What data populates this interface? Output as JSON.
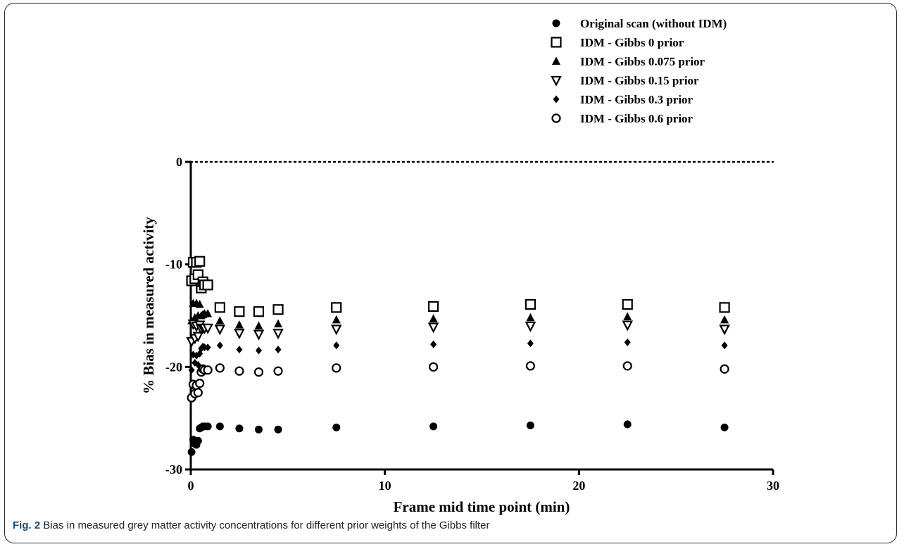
{
  "caption": {
    "label": "Fig. 2",
    "text": " Bias in measured grey matter activity concentrations for different prior weights of the Gibbs filter"
  },
  "chart_data": {
    "type": "scatter",
    "title": "",
    "xlabel": "Frame mid time point (min)",
    "ylabel": "% Bias in measured activity",
    "xlim": [
      0,
      30
    ],
    "ylim": [
      -30,
      0
    ],
    "xticks": [
      "0",
      "10",
      "20",
      "30"
    ],
    "yticks": [
      "0",
      "-10",
      "-20",
      "-30"
    ],
    "reference_line": {
      "y": 0,
      "style": "dotted"
    },
    "grid": false,
    "legend_position": "top-right",
    "x": [
      0.04,
      0.125,
      0.21,
      0.29,
      0.375,
      0.46,
      0.54,
      0.625,
      0.71,
      0.875,
      1.5,
      2.5,
      3.5,
      4.5,
      7.5,
      12.5,
      17.5,
      22.5,
      27.5
    ],
    "series": [
      {
        "name": "Original scan (without IDM)",
        "marker": "filled-circle",
        "color": "#000000",
        "y": [
          -28.3,
          -27.1,
          -27.5,
          -27.6,
          -27.2,
          -26.0,
          -25.9,
          -25.8,
          -25.8,
          -25.8,
          -25.8,
          -26.0,
          -26.1,
          -26.1,
          -25.9,
          -25.8,
          -25.7,
          -25.6,
          -25.9
        ]
      },
      {
        "name": "IDM - Gibbs 0 prior",
        "marker": "open-square",
        "color": "#000000",
        "y": [
          -11.6,
          -9.8,
          -11.4,
          -9.8,
          -11.0,
          -9.7,
          -12.3,
          -11.7,
          -12.0,
          -12.0,
          -14.2,
          -14.6,
          -14.6,
          -14.4,
          -14.2,
          -14.1,
          -13.9,
          -13.9,
          -14.2
        ]
      },
      {
        "name": "IDM - Gibbs 0.075 prior",
        "marker": "filled-triangle",
        "color": "#000000",
        "y": [
          -15.5,
          -13.8,
          -15.2,
          -13.8,
          -15.0,
          -13.9,
          -15.0,
          -14.9,
          -14.8,
          -14.8,
          -15.5,
          -15.9,
          -16.0,
          -15.8,
          -15.4,
          -15.3,
          -15.2,
          -15.1,
          -15.4
        ]
      },
      {
        "name": "IDM - Gibbs 0.15 prior",
        "marker": "open-triangle-down",
        "color": "#000000",
        "y": [
          -17.5,
          -15.8,
          -17.2,
          -16.0,
          -17.0,
          -15.9,
          -16.3,
          -16.2,
          -16.2,
          -16.2,
          -16.3,
          -16.7,
          -16.8,
          -16.7,
          -16.3,
          -16.1,
          -16.0,
          -15.9,
          -16.3
        ]
      },
      {
        "name": "IDM - Gibbs 0.3 prior",
        "marker": "filled-diamond",
        "color": "#000000",
        "y": [
          -20.3,
          -18.8,
          -19.6,
          -18.9,
          -19.8,
          -18.7,
          -18.2,
          -18.0,
          -18.1,
          -18.1,
          -17.9,
          -18.3,
          -18.4,
          -18.3,
          -17.9,
          -17.8,
          -17.7,
          -17.6,
          -17.9
        ]
      },
      {
        "name": "IDM - Gibbs 0.6 prior",
        "marker": "open-circle",
        "color": "#000000",
        "y": [
          -23.0,
          -21.7,
          -22.6,
          -21.8,
          -22.5,
          -21.6,
          -20.5,
          -20.2,
          -20.3,
          -20.3,
          -20.1,
          -20.4,
          -20.5,
          -20.4,
          -20.1,
          -20.0,
          -19.9,
          -19.9,
          -20.2
        ]
      }
    ]
  }
}
